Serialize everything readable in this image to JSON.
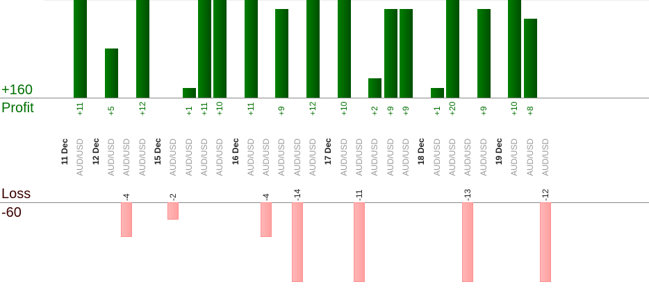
{
  "chart_data": {
    "type": "bar",
    "profit_label": "Profit",
    "loss_label": "Loss",
    "profit_max_label": "+160",
    "loss_max_label": "-60",
    "colors": {
      "profit": "#006400",
      "loss": "#ffb0b0",
      "profit_text": "#007000",
      "loss_text": "#3a0000"
    },
    "columns": [
      {
        "date": "11 Dec"
      },
      {
        "pair": "AUD/USD",
        "value": 11
      },
      {
        "date": "12 Dec"
      },
      {
        "pair": "AUD/USD",
        "value": 5
      },
      {
        "pair": "AUD/USD",
        "value": -4
      },
      {
        "pair": "AUD/USD",
        "value": 12
      },
      {
        "date": "15 Dec"
      },
      {
        "pair": "AUD/USD",
        "value": -2
      },
      {
        "pair": "AUD/USD",
        "value": 1
      },
      {
        "pair": "AUD/USD",
        "value": 11
      },
      {
        "pair": "AUD/USD",
        "value": 10
      },
      {
        "date": "16 Dec"
      },
      {
        "pair": "AUD/USD",
        "value": 11
      },
      {
        "pair": "AUD/USD",
        "value": -4
      },
      {
        "pair": "AUD/USD",
        "value": 9
      },
      {
        "pair": "AUD/USD",
        "value": -14
      },
      {
        "pair": "AUD/USD",
        "value": 12
      },
      {
        "date": "17 Dec"
      },
      {
        "pair": "AUD/USD",
        "value": 10
      },
      {
        "pair": "AUD/USD",
        "value": -11
      },
      {
        "pair": "AUD/USD",
        "value": 2
      },
      {
        "pair": "AUD/USD",
        "value": 9
      },
      {
        "pair": "AUD/USD",
        "value": 9
      },
      {
        "date": "18 Dec"
      },
      {
        "pair": "AUD/USD",
        "value": 1
      },
      {
        "pair": "AUD/USD",
        "value": 20
      },
      {
        "pair": "AUD/USD",
        "value": -13
      },
      {
        "pair": "AUD/USD",
        "value": 9
      },
      {
        "date": "19 Dec"
      },
      {
        "pair": "AUD/USD",
        "value": 10
      },
      {
        "pair": "AUD/USD",
        "value": 8
      },
      {
        "pair": "AUD/USD",
        "value": -12
      }
    ]
  }
}
